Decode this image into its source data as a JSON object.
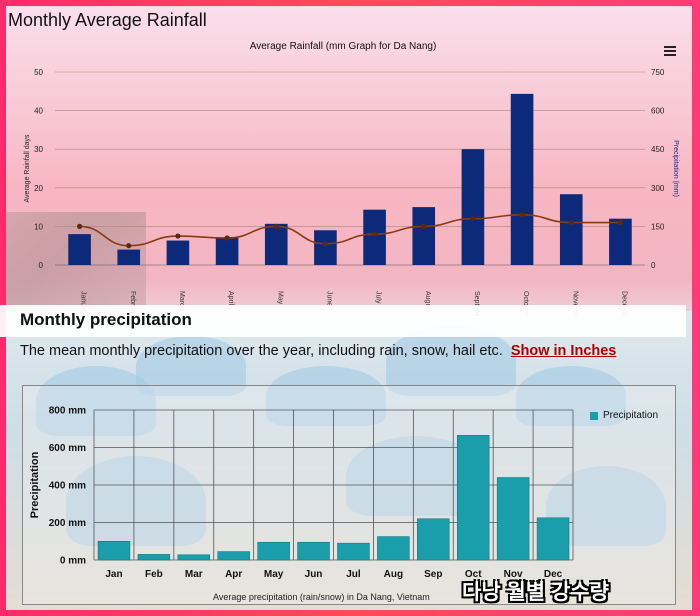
{
  "page": {
    "title": "Monthly Average Rainfall"
  },
  "top_chart": {
    "subtitle": "Average Rainfall (mm Graph for Da Nang)",
    "left_axis_label": "Average Rainfall days",
    "right_axis_label": "Precipitation (mm)",
    "left_ticks": [
      "0",
      "10",
      "20",
      "30",
      "40",
      "50"
    ],
    "right_ticks": [
      "0",
      "150",
      "300",
      "450",
      "600",
      "750"
    ]
  },
  "section": {
    "title": "Monthly precipitation",
    "description": "The mean monthly precipitation over the year, including rain, snow, hail etc.",
    "link": "Show in Inches"
  },
  "bottom_chart": {
    "ylabel": "Precipitation",
    "y_ticks": [
      "0 mm",
      "200 mm",
      "400 mm",
      "600 mm",
      "800 mm"
    ],
    "legend": "Precipitation",
    "caption": "Average precipitation (rain/snow) in Da Nang, Vietnam"
  },
  "overlay": {
    "korean_caption": "다낭 월별 강수량"
  },
  "colors": {
    "top_bars": "#0d2a7a",
    "line": "#8a3a12",
    "bottom_bars": "#1a9eab"
  },
  "chart_data": [
    {
      "type": "bar",
      "title": "Average Rainfall (mm Graph for Da Nang)",
      "categories": [
        "January",
        "February",
        "March",
        "April",
        "May",
        "June",
        "July",
        "August",
        "September",
        "October",
        "November",
        "December"
      ],
      "series": [
        {
          "name": "Precipitation (mm)",
          "axis": "right",
          "values": [
            120,
            60,
            95,
            105,
            160,
            135,
            215,
            225,
            450,
            665,
            275,
            180
          ]
        },
        {
          "name": "Average Rainfall days",
          "axis": "left",
          "type": "line",
          "values": [
            10,
            5,
            7.5,
            7,
            10,
            5.5,
            8,
            10,
            12,
            13,
            11,
            11
          ]
        }
      ],
      "ylim_left": [
        0,
        50
      ],
      "ylim_right": [
        0,
        750
      ],
      "grid": true
    },
    {
      "type": "bar",
      "title": "",
      "categories": [
        "Jan",
        "Feb",
        "Mar",
        "Apr",
        "May",
        "Jun",
        "Jul",
        "Aug",
        "Sep",
        "Oct",
        "Nov",
        "Dec"
      ],
      "values": [
        100,
        30,
        28,
        45,
        95,
        95,
        90,
        125,
        220,
        665,
        440,
        225
      ],
      "xlabel": "",
      "ylabel": "Precipitation",
      "ylim": [
        0,
        800
      ],
      "grid": true,
      "legend_position": "top-right"
    }
  ]
}
